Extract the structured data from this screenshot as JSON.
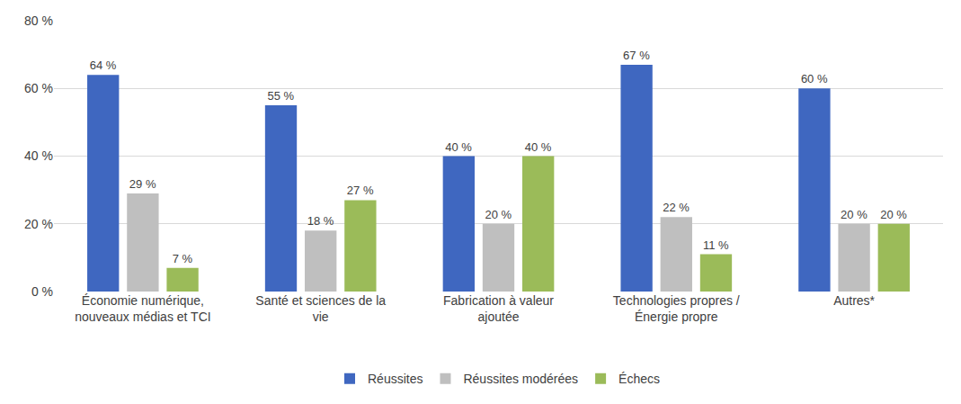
{
  "chart_data": {
    "type": "bar",
    "categories": [
      "Économie numérique, nouveaux médias et TCI",
      "Santé et sciences de la vie",
      "Fabrication à valeur ajoutée",
      "Technologies propres / Énergie propre",
      "Autres*"
    ],
    "series": [
      {
        "name": "Réussites",
        "color": "#3f67c0",
        "values": [
          64,
          55,
          40,
          67,
          60
        ],
        "value_labels": [
          "64 %",
          "55 %",
          "40 %",
          "67 %",
          "60 %"
        ]
      },
      {
        "name": "Réussites modérées",
        "color": "#bfbfbf",
        "values": [
          29,
          18,
          20,
          22,
          20
        ],
        "value_labels": [
          "29 %",
          "18 %",
          "20 %",
          "22 %",
          "20 %"
        ]
      },
      {
        "name": "Échecs",
        "color": "#9bbb59",
        "values": [
          7,
          27,
          40,
          11,
          20
        ],
        "value_labels": [
          "7 %",
          "27 %",
          "40 %",
          "11 %",
          "20 %"
        ]
      }
    ],
    "ylim": [
      0,
      80
    ],
    "yticks": [
      {
        "value": 0,
        "label": "0 %"
      },
      {
        "value": 20,
        "label": "20 %"
      },
      {
        "value": 40,
        "label": "40 %"
      },
      {
        "value": 60,
        "label": "60 %"
      },
      {
        "value": 80,
        "label": "80 %"
      }
    ],
    "grid": true,
    "legend": "bottom",
    "data_labels": true
  }
}
